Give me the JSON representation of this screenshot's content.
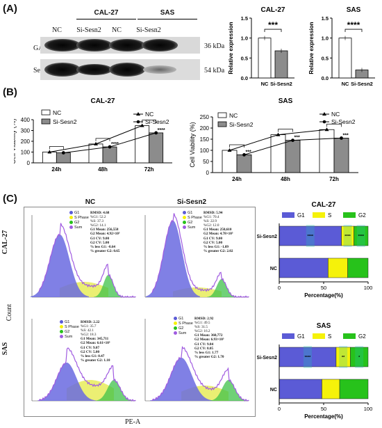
{
  "panels": {
    "a": "(A)",
    "b": "(B)",
    "c": "(C)"
  },
  "blot": {
    "cell_lines": [
      "CAL-27",
      "SAS"
    ],
    "groups": [
      "NC",
      "Si-Sesn2",
      "NC",
      "Si-Sesn2"
    ],
    "rows": [
      {
        "label": "GAPDH",
        "kda": "36 kDa"
      },
      {
        "label": "Sesn-2",
        "kda": "54 kDa"
      }
    ]
  },
  "colors": {
    "nc": "#ffffff",
    "si": "#8c8c8c",
    "g1": "#5b5bd6",
    "s": "#f5f20a",
    "g2": "#27c21b",
    "sig": "#1fc6b8"
  },
  "chart_data": [
    {
      "type": "bar",
      "title": "CAL-27",
      "categories": [
        "NC",
        "Si-Sesn2"
      ],
      "values": [
        1.0,
        0.68
      ],
      "ylabel": "Relative expression",
      "ylim": [
        0,
        1.5
      ],
      "yticks": [
        "0.0",
        "0.5",
        "1.0",
        "1.5"
      ],
      "significance": "***"
    },
    {
      "type": "bar",
      "title": "SAS",
      "categories": [
        "NC",
        "Si-Sesn2"
      ],
      "values": [
        1.0,
        0.2
      ],
      "ylabel": "Relative expression",
      "ylim": [
        0,
        1.5
      ],
      "yticks": [
        "0.0",
        "0.5",
        "1.0",
        "1.5"
      ],
      "significance": "****"
    },
    {
      "type": "bar",
      "title": "CAL-27",
      "categories": [
        "24h",
        "48h",
        "72h"
      ],
      "series": [
        {
          "name": "NC",
          "values": [
            100,
            175,
            345
          ]
        },
        {
          "name": "Si-Sesn2",
          "values": [
            93,
            148,
            278
          ]
        }
      ],
      "ylabel": "Cell Viability (%)",
      "ylim": [
        0,
        400
      ],
      "yticks": [
        "0",
        "100",
        "200",
        "300",
        "400"
      ],
      "legend": [
        "NC",
        "Si-Sesn2",
        "NC",
        "Si-Sesn2"
      ],
      "significance": [
        "",
        "****",
        "****"
      ]
    },
    {
      "type": "bar",
      "title": "SAS",
      "categories": [
        "24h",
        "48h",
        "72h"
      ],
      "series": [
        {
          "name": "NC",
          "values": [
            100,
            170,
            193
          ]
        },
        {
          "name": "Si-Sesn2",
          "values": [
            80,
            145,
            155
          ]
        }
      ],
      "ylabel": "Cell Viability (%)",
      "ylim": [
        0,
        250
      ],
      "yticks": [
        "0",
        "50",
        "100",
        "150",
        "200",
        "250"
      ],
      "legend": [
        "NC",
        "Si-Sesn2",
        "NC",
        "Si-Sesn2"
      ],
      "significance": [
        "***",
        "***",
        "***"
      ]
    },
    {
      "type": "bar",
      "title": "CAL-27",
      "categories": [
        "Si-Sesn2",
        "NC"
      ],
      "series": [
        {
          "name": "G1",
          "values": [
            70,
            55
          ]
        },
        {
          "name": "S",
          "values": [
            14,
            22
          ]
        },
        {
          "name": "G2",
          "values": [
            16,
            23
          ]
        }
      ],
      "xlabel": "Percentage(%)",
      "xlim": [
        0,
        100
      ],
      "xticks": [
        "0",
        "50",
        "100"
      ],
      "legend": "top",
      "significance": [
        "****",
        "****",
        "****"
      ]
    },
    {
      "type": "bar",
      "title": "SAS",
      "categories": [
        "Si-Sesn2",
        "NC"
      ],
      "series": [
        {
          "name": "G1",
          "values": [
            64,
            48
          ]
        },
        {
          "name": "S",
          "values": [
            16,
            20
          ]
        },
        {
          "name": "G2",
          "values": [
            20,
            32
          ]
        }
      ],
      "xlabel": "Percentage(%)",
      "xlim": [
        0,
        100
      ],
      "xticks": [
        "0",
        "50",
        "100"
      ],
      "legend": "top",
      "significance": [
        "****",
        "**",
        "*"
      ]
    }
  ],
  "flow": {
    "col_titles": [
      "NC",
      "Si-Sesn2"
    ],
    "row_titles": [
      "CAL-27",
      "SAS"
    ],
    "xlabel": "PE-A",
    "ylabel": "Count",
    "legend": [
      "G1",
      "S Phase",
      "G2",
      "Sum"
    ],
    "stats": [
      {
        "rmsd": "RMSD: 4.68",
        "g1": "%G1: 52.2",
        "s": "%S: 37.3",
        "g2": "%G2: 14.1",
        "g1mean": "G1 Mean: 256,558",
        "g2mean": "G2 Mean: 4.92×10⁵",
        "g1cv": "G1 CV: 9.00",
        "g2cv": "G2 CV: 5.00",
        "lessg1": "% less G1: -0.64",
        "greaterg2": "% greater G2: 0.65"
      },
      {
        "rmsd": "RMSD: 5.94",
        "g1": "%G1: 70.4",
        "s": "%S: 22.9",
        "g2": "%G2: 12.0",
        "g1mean": "G1 Mean: 250,610",
        "g2mean": "G2 Mean: 4.78×10⁵",
        "g1cv": "G1 CV: 9.00",
        "g2cv": "G2 CV: 5.00",
        "lessg1": "% less G1: -1.09",
        "greaterg2": "% greater G2: 2.02"
      },
      {
        "rmsd": "RMSD: 2.22",
        "g1": "%G1: 35.7",
        "s": "%S: 42.1",
        "g2": "%G2: 18.3",
        "g1mean": "G1 Mean: 345,711",
        "g2mean": "G2 Mean: 6.61×10⁵",
        "g1cv": "G1 CV: 9.07",
        "g2cv": "G2 CV: 5.00",
        "lessg1": "% less G1: 0.47",
        "greaterg2": "% greater G2: 1.10"
      },
      {
        "rmsd": "RMSD: 2.92",
        "g1": "%G1: 49.5",
        "s": "%S: 31.5",
        "g2": "%G2: 16.2",
        "g1mean": "G1 Mean: 360,772",
        "g2mean": "G2 Mean: 6.93×10⁵",
        "g1cv": "G1 CV: 9.84",
        "g2cv": "G2 CV: 8.05",
        "lessg1": "% less G1: 1.77",
        "greaterg2": "% greater G2: 1.70"
      }
    ]
  }
}
